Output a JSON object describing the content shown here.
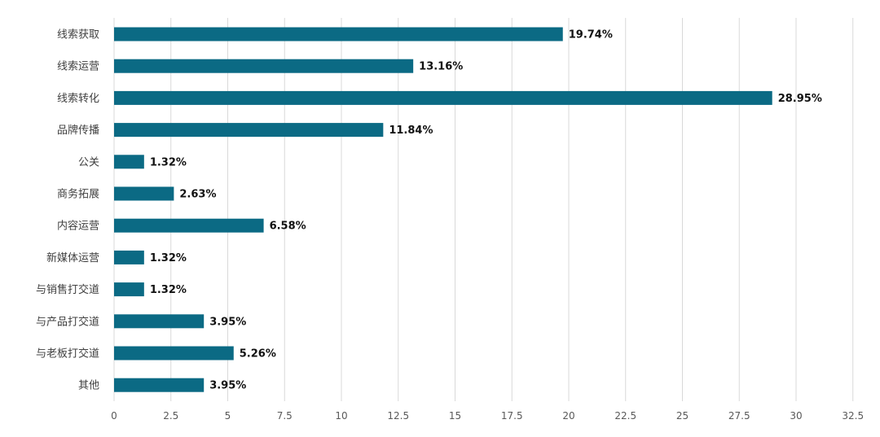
{
  "chart_data": {
    "type": "bar",
    "orientation": "horizontal",
    "categories": [
      "线索获取",
      "线索运营",
      "线索转化",
      "品牌传播",
      "公关",
      "商务拓展",
      "内容运营",
      "新媒体运营",
      "与销售打交道",
      "与产品打交道",
      "与老板打交道",
      "其他"
    ],
    "values": [
      19.74,
      13.16,
      28.95,
      11.84,
      1.32,
      2.63,
      6.58,
      1.32,
      1.32,
      3.95,
      5.26,
      3.95
    ],
    "data_labels": [
      "19.74%",
      "13.16%",
      "28.95%",
      "11.84%",
      "1.32%",
      "2.63%",
      "6.58%",
      "1.32%",
      "1.32%",
      "3.95%",
      "5.26%",
      "3.95%"
    ],
    "x_ticks": [
      "0",
      "2.5",
      "5",
      "7.5",
      "10",
      "12.5",
      "15",
      "17.5",
      "20",
      "22.5",
      "25",
      "27.5",
      "30",
      "32.5"
    ],
    "xlim": [
      0,
      32.5
    ],
    "title": "",
    "xlabel": "",
    "ylabel": "",
    "grid": "vertical",
    "legend": "none",
    "colors": {
      "bar": "#0b6a84",
      "grid": "#d9d9d9",
      "text": "#404040",
      "label": "#111111"
    }
  }
}
